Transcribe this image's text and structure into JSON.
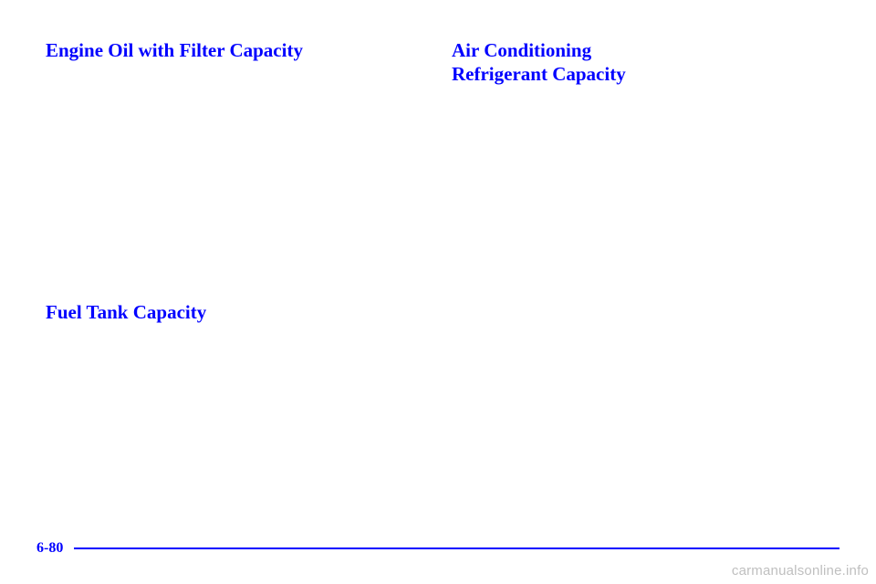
{
  "left": {
    "heading1": "Engine Oil with Filter Capacity",
    "heading2": "Fuel Tank Capacity"
  },
  "right": {
    "heading1_line1": "Air Conditioning",
    "heading1_line2": "Refrigerant Capacity"
  },
  "footer": {
    "page_number": "6-80"
  },
  "watermark": "carmanualsonline.info",
  "colors": {
    "accent": "#0000ff",
    "background": "#ffffff",
    "watermark": "#bfbfbf"
  }
}
